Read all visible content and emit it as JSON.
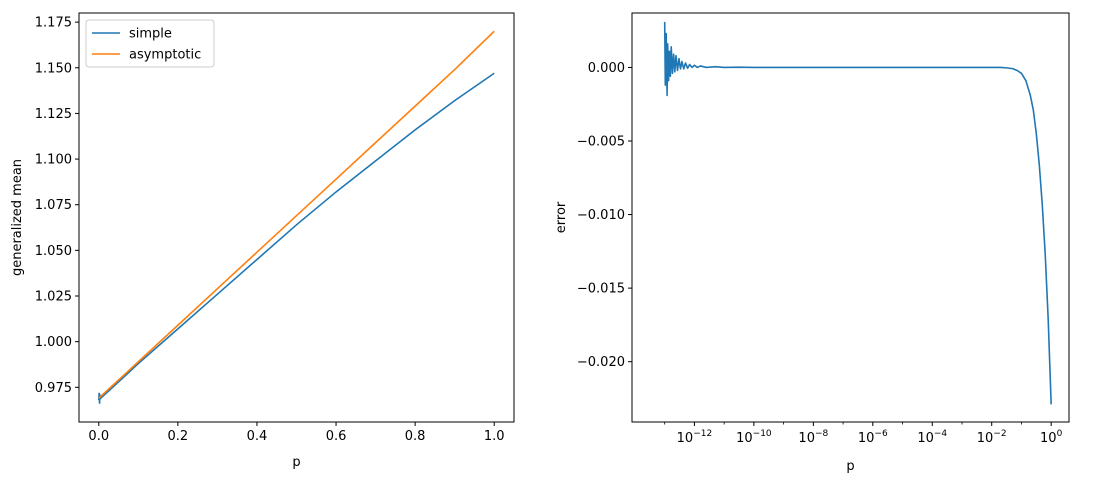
{
  "chart_data": [
    {
      "type": "line",
      "xlabel": "p",
      "ylabel": "generalized mean",
      "xlim": [
        -0.05,
        1.05
      ],
      "ylim": [
        0.956,
        1.18
      ],
      "xticks": [
        0.0,
        0.2,
        0.4,
        0.6,
        0.8,
        1.0
      ],
      "xtick_labels": [
        "0.0",
        "0.2",
        "0.4",
        "0.6",
        "0.8",
        "1.0"
      ],
      "yticks": [
        0.975,
        1.0,
        1.025,
        1.05,
        1.075,
        1.1,
        1.125,
        1.15,
        1.175
      ],
      "ytick_labels": [
        "0.975",
        "1.000",
        "1.025",
        "1.050",
        "1.075",
        "1.100",
        "1.125",
        "1.150",
        "1.175"
      ],
      "grid": false,
      "legend": "top-left",
      "series": [
        {
          "name": "simple",
          "color": "#1f77b4",
          "x": [
            0,
            0.001,
            0.002,
            0.003,
            0.005,
            0.1,
            0.2,
            0.3,
            0.4,
            0.5,
            0.6,
            0.7,
            0.8,
            0.9,
            1.0
          ],
          "y": [
            0.968,
            0.972,
            0.966,
            0.971,
            0.969,
            0.988,
            1.007,
            1.026,
            1.045,
            1.064,
            1.082,
            1.099,
            1.116,
            1.132,
            1.147
          ]
        },
        {
          "name": "asymptotic",
          "color": "#ff7f0e",
          "x": [
            0,
            0.1,
            0.2,
            0.3,
            0.4,
            0.5,
            0.6,
            0.7,
            0.8,
            0.9,
            1.0
          ],
          "y": [
            0.969,
            0.989,
            1.009,
            1.029,
            1.049,
            1.069,
            1.089,
            1.109,
            1.129,
            1.149,
            1.17
          ]
        }
      ]
    },
    {
      "type": "line",
      "xlabel": "p",
      "ylabel": "error",
      "xscale": "log",
      "xlim_log10": [
        -14.1,
        0.6
      ],
      "ylim": [
        -0.0241,
        0.0037
      ],
      "xticks_log10": [
        -12,
        -10,
        -8,
        -6,
        -4,
        -2,
        0
      ],
      "xtick_exponents": [
        "−12",
        "−10",
        "−8",
        "−6",
        "−4",
        "−2",
        "0"
      ],
      "xtick_base": "10",
      "yticks": [
        0.0,
        -0.005,
        -0.01,
        -0.015,
        -0.02
      ],
      "ytick_labels": [
        "0.000",
        "−0.005",
        "−0.010",
        "−0.015",
        "−0.020"
      ],
      "grid": false,
      "series": [
        {
          "name": "",
          "color": "#1f77b4",
          "x_log10": [
            -13.0,
            -12.98,
            -12.95,
            -12.92,
            -12.9,
            -12.87,
            -12.84,
            -12.81,
            -12.78,
            -12.74,
            -12.7,
            -12.66,
            -12.62,
            -12.57,
            -12.52,
            -12.47,
            -12.42,
            -12.36,
            -12.3,
            -12.23,
            -12.16,
            -12.08,
            -12.0,
            -11.9,
            -11.8,
            -11.6,
            -11.3,
            -11.0,
            -10.5,
            -10.0,
            -8.0,
            -6.0,
            -4.0,
            -3.0,
            -2.0,
            -1.7,
            -1.5,
            -1.3,
            -1.15,
            -1.0,
            -0.85,
            -0.7,
            -0.6,
            -0.5,
            -0.4,
            -0.3,
            -0.2,
            -0.1,
            0.0
          ],
          "y": [
            0.0031,
            -0.0012,
            0.0023,
            -0.0019,
            0.0016,
            -0.0009,
            0.0011,
            -0.0006,
            0.0014,
            -0.0004,
            0.0009,
            -0.0003,
            0.0008,
            -0.0002,
            0.0006,
            -0.0001,
            0.0004,
            -0.0001,
            0.0003,
            -5e-05,
            0.0002,
            0.0,
            0.00015,
            0.0,
            0.0001,
            0.0,
            5e-05,
            0.0,
            2e-05,
            0.0,
            0.0,
            0.0,
            0.0,
            0.0,
            0.0,
            0.0,
            -3e-05,
            -8e-05,
            -0.0002,
            -0.0004,
            -0.0009,
            -0.0019,
            -0.0029,
            -0.0045,
            -0.0066,
            -0.0093,
            -0.0127,
            -0.0171,
            -0.0229
          ]
        }
      ]
    }
  ]
}
